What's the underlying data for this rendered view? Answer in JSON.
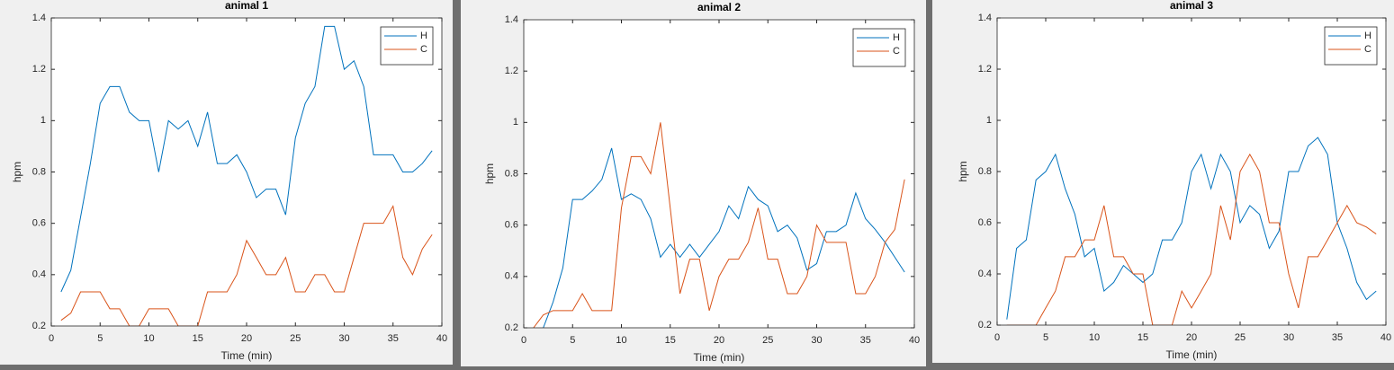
{
  "chart_data": [
    {
      "type": "line",
      "title": "animal 1",
      "xlabel": "Time (min)",
      "ylabel": "hpm",
      "x": [
        1,
        2,
        3,
        4,
        5,
        6,
        7,
        8,
        9,
        10,
        11,
        12,
        13,
        14,
        15,
        16,
        17,
        18,
        19,
        20,
        21,
        22,
        23,
        24,
        25,
        26,
        27,
        28,
        29,
        30,
        31,
        32,
        33,
        34,
        35,
        36,
        37,
        38,
        39
      ],
      "xlim": [
        0,
        40
      ],
      "xticks": [
        0,
        5,
        10,
        15,
        20,
        25,
        30,
        35,
        40
      ],
      "ylim": [
        0.2,
        1.4
      ],
      "yticks": [
        0.2,
        0.4,
        0.6,
        0.8,
        1,
        1.2,
        1.4
      ],
      "legend": "upper right",
      "series": [
        {
          "name": "H",
          "color": "#0072bd",
          "values": [
            0.333,
            0.417,
            0.625,
            0.833,
            1.067,
            1.133,
            1.133,
            1.033,
            1.0,
            1.0,
            0.8,
            1.0,
            0.967,
            1.0,
            0.9,
            1.033,
            0.833,
            0.833,
            0.867,
            0.8,
            0.7,
            0.733,
            0.733,
            0.633,
            0.933,
            1.067,
            1.133,
            1.367,
            1.367,
            1.2,
            1.233,
            1.133,
            0.867,
            0.867,
            0.867,
            0.8,
            0.8,
            0.833,
            0.883
          ]
        },
        {
          "name": "C",
          "color": "#d95319",
          "values": [
            0.222,
            0.25,
            0.333,
            0.333,
            0.333,
            0.267,
            0.267,
            0.2,
            0.2,
            0.267,
            0.267,
            0.267,
            0.2,
            0.2,
            0.2,
            0.333,
            0.333,
            0.333,
            0.4,
            0.533,
            0.467,
            0.4,
            0.4,
            0.467,
            0.333,
            0.333,
            0.4,
            0.4,
            0.333,
            0.333,
            0.467,
            0.6,
            0.6,
            0.6,
            0.667,
            0.467,
            0.4,
            0.5,
            0.556
          ]
        }
      ]
    },
    {
      "type": "line",
      "title": "animal 2",
      "xlabel": "Time (min)",
      "ylabel": "hpm",
      "x": [
        1,
        2,
        3,
        4,
        5,
        6,
        7,
        8,
        9,
        10,
        11,
        12,
        13,
        14,
        15,
        16,
        17,
        18,
        19,
        20,
        21,
        22,
        23,
        24,
        25,
        26,
        27,
        28,
        29,
        30,
        31,
        32,
        33,
        34,
        35,
        36,
        37,
        38,
        39
      ],
      "xlim": [
        0,
        40
      ],
      "xticks": [
        0,
        5,
        10,
        15,
        20,
        25,
        30,
        35,
        40
      ],
      "ylim": [
        0.2,
        1.4
      ],
      "yticks": [
        0.2,
        0.4,
        0.6,
        0.8,
        1,
        1.2,
        1.4
      ],
      "legend": "upper right",
      "series": [
        {
          "name": "H",
          "color": "#0072bd",
          "values": [
            0.1,
            0.2,
            0.3,
            0.433,
            0.7,
            0.7,
            0.733,
            0.778,
            0.9,
            0.7,
            0.722,
            0.7,
            0.625,
            0.475,
            0.525,
            0.475,
            0.525,
            0.475,
            0.525,
            0.575,
            0.675,
            0.625,
            0.75,
            0.7,
            0.675,
            0.575,
            0.6,
            0.55,
            0.425,
            0.45,
            0.575,
            0.575,
            0.6,
            0.725,
            0.625,
            0.583,
            0.533,
            0.475,
            0.417
          ]
        },
        {
          "name": "C",
          "color": "#d95319",
          "values": [
            0.2,
            0.25,
            0.267,
            0.267,
            0.267,
            0.333,
            0.267,
            0.267,
            0.267,
            0.667,
            0.867,
            0.867,
            0.8,
            1.0,
            0.667,
            0.333,
            0.467,
            0.467,
            0.267,
            0.4,
            0.467,
            0.467,
            0.533,
            0.667,
            0.467,
            0.467,
            0.333,
            0.333,
            0.4,
            0.6,
            0.533,
            0.533,
            0.533,
            0.333,
            0.333,
            0.4,
            0.533,
            0.583,
            0.778
          ]
        }
      ]
    },
    {
      "type": "line",
      "title": "animal 3",
      "xlabel": "Time (min)",
      "ylabel": "hpm",
      "x": [
        1,
        2,
        3,
        4,
        5,
        6,
        7,
        8,
        9,
        10,
        11,
        12,
        13,
        14,
        15,
        16,
        17,
        18,
        19,
        20,
        21,
        22,
        23,
        24,
        25,
        26,
        27,
        28,
        29,
        30,
        31,
        32,
        33,
        34,
        35,
        36,
        37,
        38,
        39
      ],
      "xlim": [
        0,
        40
      ],
      "xticks": [
        0,
        5,
        10,
        15,
        20,
        25,
        30,
        35,
        40
      ],
      "ylim": [
        0.2,
        1.4
      ],
      "yticks": [
        0.2,
        0.4,
        0.6,
        0.8,
        1,
        1.2,
        1.4
      ],
      "legend": "upper right",
      "series": [
        {
          "name": "H",
          "color": "#0072bd",
          "values": [
            0.222,
            0.5,
            0.533,
            0.767,
            0.8,
            0.867,
            0.733,
            0.633,
            0.467,
            0.5,
            0.333,
            0.367,
            0.433,
            0.4,
            0.367,
            0.4,
            0.533,
            0.533,
            0.6,
            0.8,
            0.867,
            0.733,
            0.867,
            0.8,
            0.6,
            0.667,
            0.633,
            0.5,
            0.567,
            0.8,
            0.8,
            0.9,
            0.933,
            0.867,
            0.6,
            0.5,
            0.367,
            0.3,
            0.333
          ]
        },
        {
          "name": "C",
          "color": "#d95319",
          "values": [
            0.2,
            0.2,
            0.2,
            0.2,
            0.267,
            0.333,
            0.467,
            0.467,
            0.533,
            0.533,
            0.667,
            0.467,
            0.467,
            0.4,
            0.4,
            0.2,
            0.2,
            0.2,
            0.333,
            0.267,
            0.333,
            0.4,
            0.667,
            0.533,
            0.8,
            0.867,
            0.8,
            0.6,
            0.6,
            0.4,
            0.267,
            0.467,
            0.467,
            0.533,
            0.6,
            0.667,
            0.6,
            0.583,
            0.556
          ]
        }
      ]
    }
  ]
}
